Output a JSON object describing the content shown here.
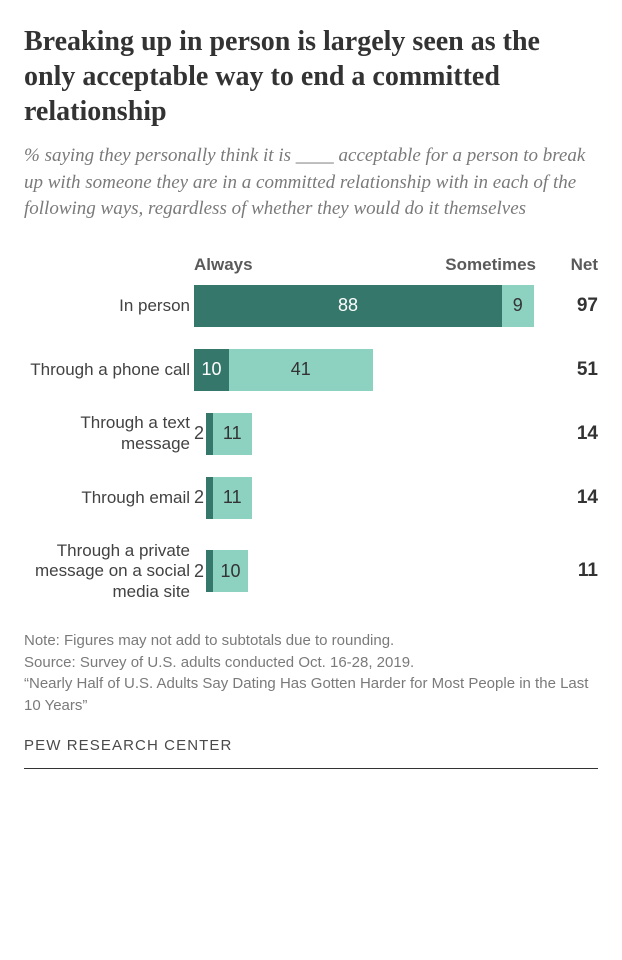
{
  "title": "Breaking up in person is largely seen as the only acceptable way to end a committed relationship",
  "subtitle": "% saying they personally think it is ____ acceptable for a person to break up with someone they are in a committed relationship with in each of the following ways, regardless of whether they would do it themselves",
  "chart": {
    "type": "stacked-bar-horizontal",
    "headers": {
      "always": "Always",
      "sometimes": "Sometimes",
      "net": "Net"
    },
    "colors": {
      "always": "#36776b",
      "sometimes": "#8dd1c1",
      "text_inside_dark": "#ffffff",
      "text_inside_light": "#333333"
    },
    "bar_max": 100,
    "rows": [
      {
        "label": "In person",
        "always": 88,
        "sometimes": 9,
        "net": 97,
        "always_outside": false
      },
      {
        "label": "Through a phone call",
        "always": 10,
        "sometimes": 41,
        "net": 51,
        "always_outside": false
      },
      {
        "label": "Through a text message",
        "always": 2,
        "sometimes": 11,
        "net": 14,
        "always_outside": true
      },
      {
        "label": "Through email",
        "always": 2,
        "sometimes": 11,
        "net": 14,
        "always_outside": true
      },
      {
        "label": "Through a private message on a social media site",
        "always": 2,
        "sometimes": 10,
        "net": 11,
        "always_outside": true
      }
    ]
  },
  "note": "Note: Figures may not add to subtotals due to rounding.\nSource: Survey of U.S. adults conducted Oct. 16-28, 2019.\n“Nearly Half of U.S. Adults Say Dating Has Gotten Harder for Most People in the Last 10 Years”",
  "brand": "PEW RESEARCH CENTER"
}
